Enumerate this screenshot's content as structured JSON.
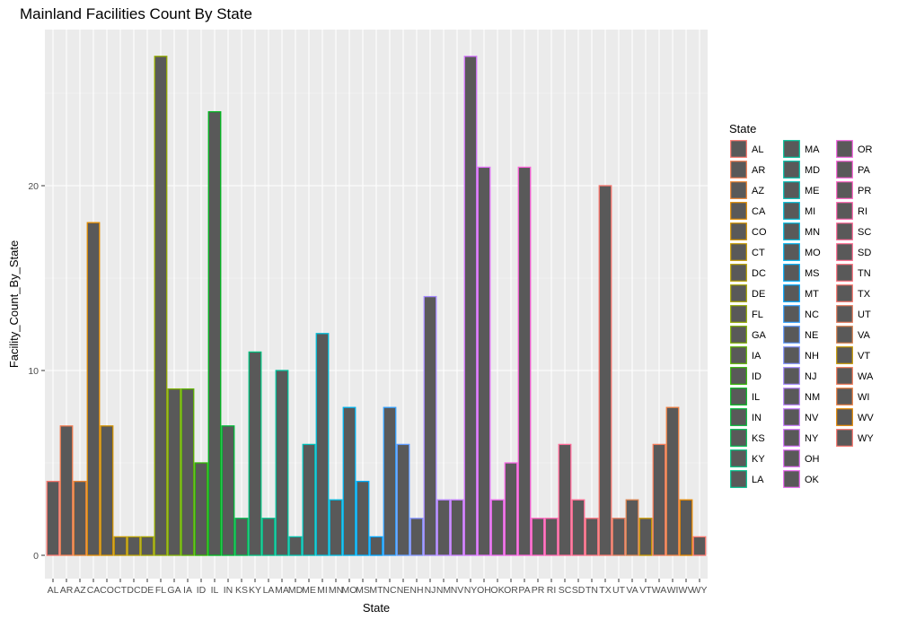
{
  "chart_data": {
    "type": "bar",
    "title": "Mainland Facilities Count By State",
    "xlabel": "State",
    "ylabel": "Facility_Count_By_State",
    "ylim": [
      0,
      28
    ],
    "y_ticks": [
      0,
      10,
      20
    ],
    "grid": true,
    "legend_title": "State",
    "legend_position": "right",
    "categories": [
      "AL",
      "AR",
      "AZ",
      "CA",
      "CO",
      "CT",
      "DC",
      "DE",
      "FL",
      "GA",
      "IA",
      "ID",
      "IL",
      "IN",
      "KS",
      "KY",
      "LA",
      "MA",
      "MD",
      "ME",
      "MI",
      "MN",
      "MO",
      "MS",
      "MT",
      "NC",
      "NE",
      "NH",
      "NJ",
      "NM",
      "NV",
      "NY",
      "OH",
      "OK",
      "OR",
      "PA",
      "PR",
      "RI",
      "SC",
      "SD",
      "TN",
      "TX",
      "UT",
      "VA",
      "VT",
      "WA",
      "WI",
      "WV",
      "WY"
    ],
    "values": [
      4,
      7,
      4,
      18,
      7,
      1,
      1,
      1,
      27,
      9,
      9,
      5,
      24,
      7,
      2,
      11,
      2,
      10,
      1,
      6,
      12,
      3,
      8,
      4,
      1,
      8,
      6,
      2,
      14,
      3,
      3,
      27,
      21,
      3,
      5,
      21,
      2,
      2,
      6,
      3,
      2,
      20,
      2,
      3,
      2,
      6,
      8,
      3,
      1
    ],
    "colors": [
      "#F8766D",
      "#F27D52",
      "#EA8331",
      "#E08B00",
      "#D39200",
      "#C59900",
      "#B79F00",
      "#A6A400",
      "#93AA00",
      "#7CAE00",
      "#5EB300",
      "#2FB600",
      "#00B81F",
      "#00BA38",
      "#00BC4F",
      "#00BF7D",
      "#00C08B",
      "#00C19A",
      "#00C0AA",
      "#00BEB8",
      "#00BCD8",
      "#00BAE0",
      "#00B4F0",
      "#00ADFA",
      "#00A5FF",
      "#35A2FF",
      "#619CFF",
      "#8494FF",
      "#A58AFF",
      "#B983FF",
      "#C77CFF",
      "#D575FE",
      "#E26EF7",
      "#EC69EF",
      "#F564E3",
      "#FB61D7",
      "#FF61C3",
      "#FF65AE",
      "#FF6A98",
      "#FF6C91",
      "#FC717F",
      "#F8766D",
      "#E57C5E",
      "#DA8350",
      "#C99800",
      "#F37B59",
      "#EE8043",
      "#E58700",
      "#F8766D"
    ]
  }
}
